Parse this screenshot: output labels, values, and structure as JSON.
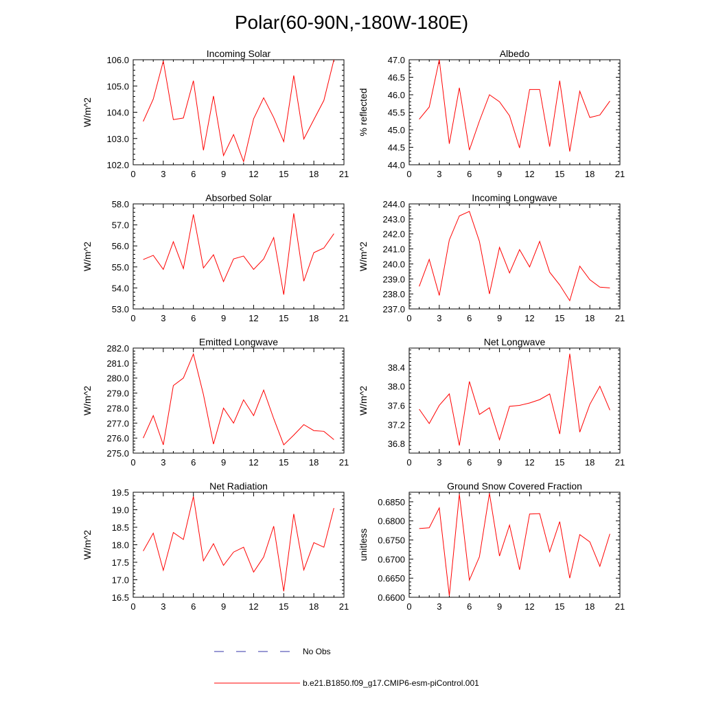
{
  "figure": {
    "title": "Polar(60-90N,-180W-180E)",
    "legend": [
      {
        "label": "No Obs",
        "color": "#3333aa",
        "style": "dashed"
      },
      {
        "label": "b.e21.B1850.f09_g17.CMIP6-esm-piControl.001",
        "color": "#ff0000",
        "style": "solid"
      }
    ],
    "colors": {
      "model": "#ff0000",
      "obs": "#3333aa"
    }
  },
  "chart_data": [
    {
      "type": "line",
      "title": "Incoming Solar",
      "ylabel": "W/m^2",
      "x": [
        1,
        2,
        3,
        4,
        5,
        6,
        7,
        8,
        9,
        10,
        11,
        12,
        13,
        14,
        15,
        16,
        17,
        18,
        19,
        20
      ],
      "values": [
        103.65,
        104.5,
        105.95,
        103.72,
        103.78,
        105.2,
        102.55,
        104.62,
        102.35,
        103.15,
        102.12,
        103.75,
        104.55,
        103.8,
        102.88,
        105.4,
        102.98,
        103.72,
        104.45,
        106.0
      ],
      "xlim": [
        0,
        21
      ],
      "ylim": [
        102,
        106
      ],
      "xticks": [
        "0",
        "3",
        "6",
        "9",
        "12",
        "15",
        "18",
        "21"
      ],
      "yticks": [
        "102.0",
        "103.0",
        "104.0",
        "105.0",
        "106.0"
      ]
    },
    {
      "type": "line",
      "title": "Albedo",
      "ylabel": "% reflected",
      "x": [
        1,
        2,
        3,
        4,
        5,
        6,
        7,
        8,
        9,
        10,
        11,
        12,
        13,
        14,
        15,
        16,
        17,
        18,
        19,
        20
      ],
      "values": [
        45.3,
        45.65,
        47.0,
        44.6,
        46.2,
        44.42,
        45.25,
        46.0,
        45.8,
        45.4,
        44.48,
        46.15,
        46.15,
        44.52,
        46.4,
        44.38,
        46.1,
        45.35,
        45.42,
        45.82
      ],
      "xlim": [
        0,
        21
      ],
      "ylim": [
        44,
        47
      ],
      "xticks": [
        "0",
        "3",
        "6",
        "9",
        "12",
        "15",
        "18",
        "21"
      ],
      "yticks": [
        "44.0",
        "44.5",
        "45.0",
        "45.5",
        "46.0",
        "46.5",
        "47.0"
      ]
    },
    {
      "type": "line",
      "title": "Absorbed Solar",
      "ylabel": "W/m^2",
      "x": [
        1,
        2,
        3,
        4,
        5,
        6,
        7,
        8,
        9,
        10,
        11,
        12,
        13,
        14,
        15,
        16,
        17,
        18,
        19,
        20
      ],
      "values": [
        55.35,
        55.55,
        54.88,
        56.2,
        54.92,
        57.5,
        54.95,
        55.58,
        54.3,
        55.38,
        55.52,
        54.88,
        55.38,
        56.4,
        53.68,
        57.55,
        54.32,
        55.68,
        55.9,
        56.58
      ],
      "xlim": [
        0,
        21
      ],
      "ylim": [
        53,
        58
      ],
      "xticks": [
        "0",
        "3",
        "6",
        "9",
        "12",
        "15",
        "18",
        "21"
      ],
      "yticks": [
        "53.0",
        "54.0",
        "55.0",
        "56.0",
        "57.0",
        "58.0"
      ]
    },
    {
      "type": "line",
      "title": "Incoming Longwave",
      "ylabel": "W/m^2",
      "x": [
        1,
        2,
        3,
        4,
        5,
        6,
        7,
        8,
        9,
        10,
        11,
        12,
        13,
        14,
        15,
        16,
        17,
        18,
        19,
        20
      ],
      "values": [
        238.5,
        240.3,
        237.9,
        241.6,
        243.2,
        243.5,
        241.5,
        238.0,
        241.1,
        239.4,
        240.95,
        239.8,
        241.5,
        239.45,
        238.6,
        237.55,
        239.85,
        238.95,
        238.45,
        238.4
      ],
      "xlim": [
        0,
        21
      ],
      "ylim": [
        237,
        244
      ],
      "xticks": [
        "0",
        "3",
        "6",
        "9",
        "12",
        "15",
        "18",
        "21"
      ],
      "yticks": [
        "237.0",
        "238.0",
        "239.0",
        "240.0",
        "241.0",
        "242.0",
        "243.0",
        "244.0"
      ]
    },
    {
      "type": "line",
      "title": "Emitted Longwave",
      "ylabel": "W/m^2",
      "x": [
        1,
        2,
        3,
        4,
        5,
        6,
        7,
        8,
        9,
        10,
        11,
        12,
        13,
        14,
        15,
        16,
        17,
        18,
        19,
        20
      ],
      "values": [
        276.0,
        277.5,
        275.55,
        279.5,
        280.0,
        281.6,
        278.9,
        275.6,
        278.0,
        277.0,
        278.55,
        277.5,
        279.2,
        277.3,
        275.55,
        276.2,
        276.9,
        276.5,
        276.45,
        275.9
      ],
      "xlim": [
        0,
        21
      ],
      "ylim": [
        275,
        282
      ],
      "xticks": [
        "0",
        "3",
        "6",
        "9",
        "12",
        "15",
        "18",
        "21"
      ],
      "yticks": [
        "275.0",
        "276.0",
        "277.0",
        "278.0",
        "279.0",
        "280.0",
        "281.0",
        "282.0"
      ]
    },
    {
      "type": "line",
      "title": "Net Longwave",
      "ylabel": "W/m^2",
      "x": [
        1,
        2,
        3,
        4,
        5,
        6,
        7,
        8,
        9,
        10,
        11,
        12,
        13,
        14,
        15,
        16,
        17,
        18,
        19,
        20
      ],
      "values": [
        37.52,
        37.22,
        37.6,
        37.84,
        36.76,
        38.1,
        37.41,
        37.55,
        36.88,
        37.58,
        37.6,
        37.65,
        37.72,
        37.84,
        37.0,
        38.68,
        37.04,
        37.62,
        38.0,
        37.5
      ],
      "xlim": [
        0,
        21
      ],
      "ylim": [
        36.6,
        38.8
      ],
      "xticks": [
        "0",
        "3",
        "6",
        "9",
        "12",
        "15",
        "18",
        "21"
      ],
      "yticks": [
        "36.8",
        "37.2",
        "37.6",
        "38.0",
        "38.4"
      ],
      "ytick_values": [
        36.8,
        37.2,
        37.6,
        38.0,
        38.4
      ]
    },
    {
      "type": "line",
      "title": "Net Radiation",
      "ylabel": "W/m^2",
      "x": [
        1,
        2,
        3,
        4,
        5,
        6,
        7,
        8,
        9,
        10,
        11,
        12,
        13,
        14,
        15,
        16,
        17,
        18,
        19,
        20
      ],
      "values": [
        17.82,
        18.33,
        17.27,
        18.35,
        18.15,
        19.38,
        17.54,
        18.03,
        17.41,
        17.79,
        17.93,
        17.22,
        17.65,
        18.53,
        16.67,
        18.88,
        17.28,
        18.06,
        17.93,
        19.05
      ],
      "xlim": [
        0,
        21
      ],
      "ylim": [
        16.5,
        19.5
      ],
      "xticks": [
        "0",
        "3",
        "6",
        "9",
        "12",
        "15",
        "18",
        "21"
      ],
      "yticks": [
        "16.5",
        "17.0",
        "17.5",
        "18.0",
        "18.5",
        "19.0",
        "19.5"
      ]
    },
    {
      "type": "line",
      "title": "Ground Snow Covered Fraction",
      "ylabel": "unitless",
      "x": [
        1,
        2,
        3,
        4,
        5,
        6,
        7,
        8,
        9,
        10,
        11,
        12,
        13,
        14,
        15,
        16,
        17,
        18,
        19,
        20
      ],
      "values": [
        0.678,
        0.6782,
        0.6834,
        0.6604,
        0.687,
        0.6645,
        0.6706,
        0.6872,
        0.6708,
        0.6789,
        0.6672,
        0.6818,
        0.6819,
        0.6719,
        0.6798,
        0.665,
        0.6764,
        0.6745,
        0.6681,
        0.6766
      ],
      "xlim": [
        0,
        21
      ],
      "ylim": [
        0.66,
        0.6875
      ],
      "xticks": [
        "0",
        "3",
        "6",
        "9",
        "12",
        "15",
        "18",
        "21"
      ],
      "yticks": [
        "0.6600",
        "0.6650",
        "0.6700",
        "0.6750",
        "0.6800",
        "0.6850"
      ],
      "ytick_values": [
        0.66,
        0.665,
        0.67,
        0.675,
        0.68,
        0.685
      ]
    }
  ]
}
